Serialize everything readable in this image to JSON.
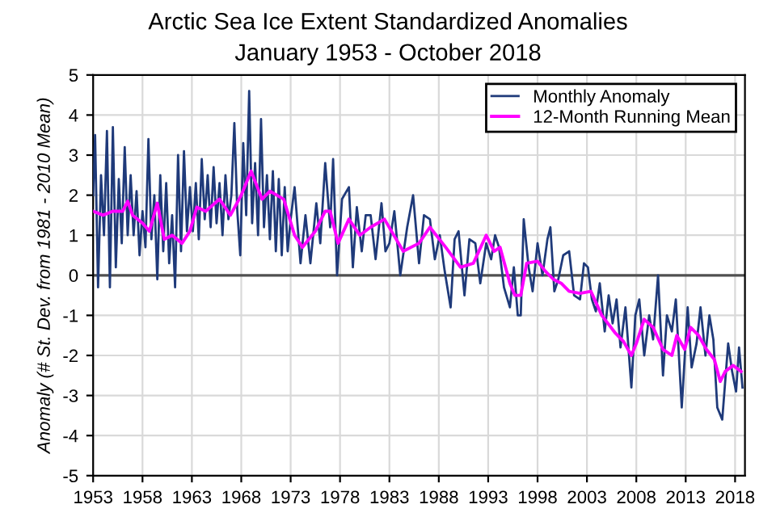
{
  "chart_data": {
    "type": "line",
    "title": "Arctic Sea Ice Extent Standardized Anomalies",
    "subtitle": "January 1953 - October 2018",
    "ylabel": "Anomaly (# St. Dev. from 1981 - 2010 Mean)",
    "xlim": [
      1953,
      2019
    ],
    "xticks": [
      1953,
      1958,
      1963,
      1968,
      1973,
      1978,
      1983,
      1988,
      1993,
      1998,
      2003,
      2008,
      2013,
      2018
    ],
    "ylim": [
      -5,
      5
    ],
    "yticks": [
      -5,
      -4,
      -3,
      -2,
      -1,
      0,
      1,
      2,
      3,
      4,
      5
    ],
    "grid": true,
    "legend": "top right",
    "ref_lines": [
      {
        "axis": "y",
        "value": 0,
        "color": "#505050"
      }
    ],
    "series": [
      {
        "name": "Monthly Anomaly",
        "color": "#1f3a7a",
        "x": [
          1953.0,
          1953.2,
          1953.5,
          1953.8,
          1954.1,
          1954.4,
          1954.7,
          1955.0,
          1955.3,
          1955.6,
          1955.9,
          1956.2,
          1956.5,
          1956.8,
          1957.1,
          1957.4,
          1957.7,
          1958.0,
          1958.3,
          1958.6,
          1958.9,
          1959.2,
          1959.5,
          1959.8,
          1960.1,
          1960.4,
          1960.7,
          1961.0,
          1961.3,
          1961.6,
          1961.9,
          1962.2,
          1962.5,
          1962.8,
          1963.1,
          1963.4,
          1963.7,
          1964.0,
          1964.3,
          1964.6,
          1964.9,
          1965.2,
          1965.5,
          1965.8,
          1966.1,
          1966.4,
          1966.7,
          1967.0,
          1967.3,
          1967.6,
          1967.9,
          1968.2,
          1968.5,
          1968.8,
          1969.1,
          1969.4,
          1969.7,
          1970.0,
          1970.3,
          1970.6,
          1970.9,
          1971.2,
          1971.5,
          1971.8,
          1972.1,
          1972.4,
          1972.7,
          1973.0,
          1973.4,
          1974.0,
          1974.5,
          1975.0,
          1975.6,
          1976.0,
          1976.5,
          1977.0,
          1977.3,
          1977.7,
          1978.2,
          1978.9,
          1979.3,
          1979.7,
          1980.2,
          1980.6,
          1981.1,
          1981.6,
          1982.2,
          1982.6,
          1983.0,
          1983.5,
          1984.1,
          1984.8,
          1985.4,
          1986.0,
          1986.5,
          1987.1,
          1987.6,
          1988.1,
          1988.6,
          1989.2,
          1989.6,
          1990.0,
          1990.6,
          1991.1,
          1991.7,
          1992.2,
          1992.8,
          1993.3,
          1993.7,
          1994.1,
          1994.6,
          1995.2,
          1995.6,
          1996.0,
          1996.3,
          1996.6,
          1997.1,
          1997.5,
          1998.0,
          1998.5,
          1999.0,
          1999.3,
          1999.7,
          2000.1,
          2000.6,
          2001.2,
          2001.7,
          2002.3,
          2002.7,
          2003.1,
          2003.5,
          2003.9,
          2004.3,
          2004.8,
          2005.2,
          2005.6,
          2006.0,
          2006.4,
          2006.9,
          2007.5,
          2007.9,
          2008.3,
          2008.8,
          2009.3,
          2009.7,
          2010.2,
          2010.7,
          2011.1,
          2011.6,
          2012.0,
          2012.6,
          2013.2,
          2013.6,
          2014.1,
          2014.5,
          2015.0,
          2015.4,
          2015.8,
          2016.2,
          2016.7,
          2017.3,
          2017.7,
          2018.1,
          2018.4,
          2018.75
        ],
        "values": [
          2.0,
          3.5,
          -0.3,
          2.5,
          1.0,
          3.6,
          -0.3,
          3.7,
          0.2,
          2.4,
          0.8,
          3.2,
          1.0,
          2.5,
          1.0,
          2.1,
          0.5,
          1.6,
          0.7,
          3.4,
          0.9,
          2.0,
          -0.1,
          2.5,
          0.6,
          2.3,
          0.3,
          1.5,
          -0.3,
          3.0,
          0.6,
          3.1,
          1.1,
          2.2,
          1.1,
          2.3,
          0.9,
          2.9,
          1.4,
          2.5,
          1.2,
          2.7,
          1.3,
          2.3,
          1.0,
          2.5,
          1.4,
          2.0,
          3.8,
          1.6,
          0.5,
          3.3,
          1.5,
          4.6,
          1.3,
          2.8,
          1.0,
          3.9,
          1.2,
          2.5,
          0.9,
          2.6,
          0.6,
          2.4,
          0.5,
          2.2,
          0.6,
          1.4,
          2.2,
          0.3,
          1.5,
          0.3,
          1.8,
          0.8,
          2.8,
          1.2,
          2.9,
          0.0,
          1.9,
          2.2,
          0.2,
          1.7,
          0.6,
          1.5,
          1.5,
          0.4,
          1.8,
          0.6,
          0.8,
          1.6,
          0.0,
          1.2,
          2.0,
          0.3,
          1.5,
          1.4,
          0.4,
          1.0,
          0.1,
          -0.8,
          0.9,
          1.1,
          -0.5,
          0.9,
          0.8,
          -0.2,
          0.8,
          0.4,
          1.0,
          0.7,
          -0.3,
          -0.8,
          0.2,
          -1.0,
          -1.0,
          1.4,
          0.2,
          -0.4,
          0.8,
          0.0,
          0.9,
          1.2,
          -0.4,
          -0.1,
          0.5,
          0.6,
          -0.5,
          -0.6,
          0.3,
          0.2,
          -0.6,
          -0.9,
          -0.2,
          -1.4,
          -0.5,
          -1.2,
          -0.6,
          -1.8,
          -0.8,
          -2.8,
          -1.0,
          -0.6,
          -2.0,
          -1.0,
          -1.6,
          0.0,
          -2.5,
          -1.0,
          -1.4,
          -0.6,
          -3.3,
          -0.8,
          -2.3,
          -1.7,
          -0.8,
          -2.0,
          -1.0,
          -1.6,
          -3.3,
          -3.6,
          -1.7,
          -2.4,
          -2.9,
          -1.8,
          -2.8
        ]
      },
      {
        "name": "12-Month Running Mean",
        "color": "#ff00ff",
        "x": [
          1953.0,
          1954.0,
          1955.0,
          1956.0,
          1956.5,
          1957.0,
          1958.0,
          1958.7,
          1959.5,
          1960.2,
          1961.0,
          1962.0,
          1962.8,
          1963.5,
          1964.4,
          1965.8,
          1966.9,
          1968.0,
          1969.0,
          1970.1,
          1970.9,
          1972.3,
          1973.4,
          1974.2,
          1975.5,
          1976.5,
          1977.0,
          1977.8,
          1978.9,
          1980.0,
          1981.1,
          1982.5,
          1984.4,
          1986.0,
          1987.1,
          1988.7,
          1990.2,
          1991.5,
          1992.8,
          1993.6,
          1994.2,
          1995.2,
          1995.7,
          1996.3,
          1996.9,
          1998.0,
          1998.8,
          1999.6,
          2000.4,
          2001.2,
          2002.3,
          2003.4,
          2004.5,
          2005.9,
          2006.7,
          2007.5,
          2008.0,
          2008.8,
          2009.7,
          2010.7,
          2011.6,
          2012.1,
          2012.9,
          2013.5,
          2014.3,
          2015.1,
          2015.9,
          2016.5,
          2017.0,
          2017.8,
          2018.6
        ],
        "values": [
          1.6,
          1.5,
          1.6,
          1.6,
          1.85,
          1.5,
          1.3,
          1.1,
          1.8,
          0.9,
          1.0,
          0.8,
          1.1,
          1.7,
          1.6,
          1.9,
          1.5,
          2.0,
          2.6,
          1.9,
          2.1,
          1.9,
          1.0,
          0.7,
          1.1,
          1.6,
          1.6,
          0.8,
          1.4,
          1.0,
          1.2,
          1.4,
          0.6,
          0.8,
          1.2,
          0.7,
          0.2,
          0.3,
          1.0,
          0.6,
          0.7,
          -0.2,
          -0.5,
          -0.5,
          0.3,
          0.35,
          0.1,
          -0.1,
          -0.2,
          -0.4,
          -0.45,
          -0.4,
          -1.0,
          -1.45,
          -1.65,
          -2.0,
          -1.7,
          -1.1,
          -1.3,
          -1.85,
          -2.0,
          -1.5,
          -1.85,
          -1.3,
          -1.5,
          -1.85,
          -2.1,
          -2.65,
          -2.4,
          -2.25,
          -2.4
        ]
      }
    ]
  }
}
